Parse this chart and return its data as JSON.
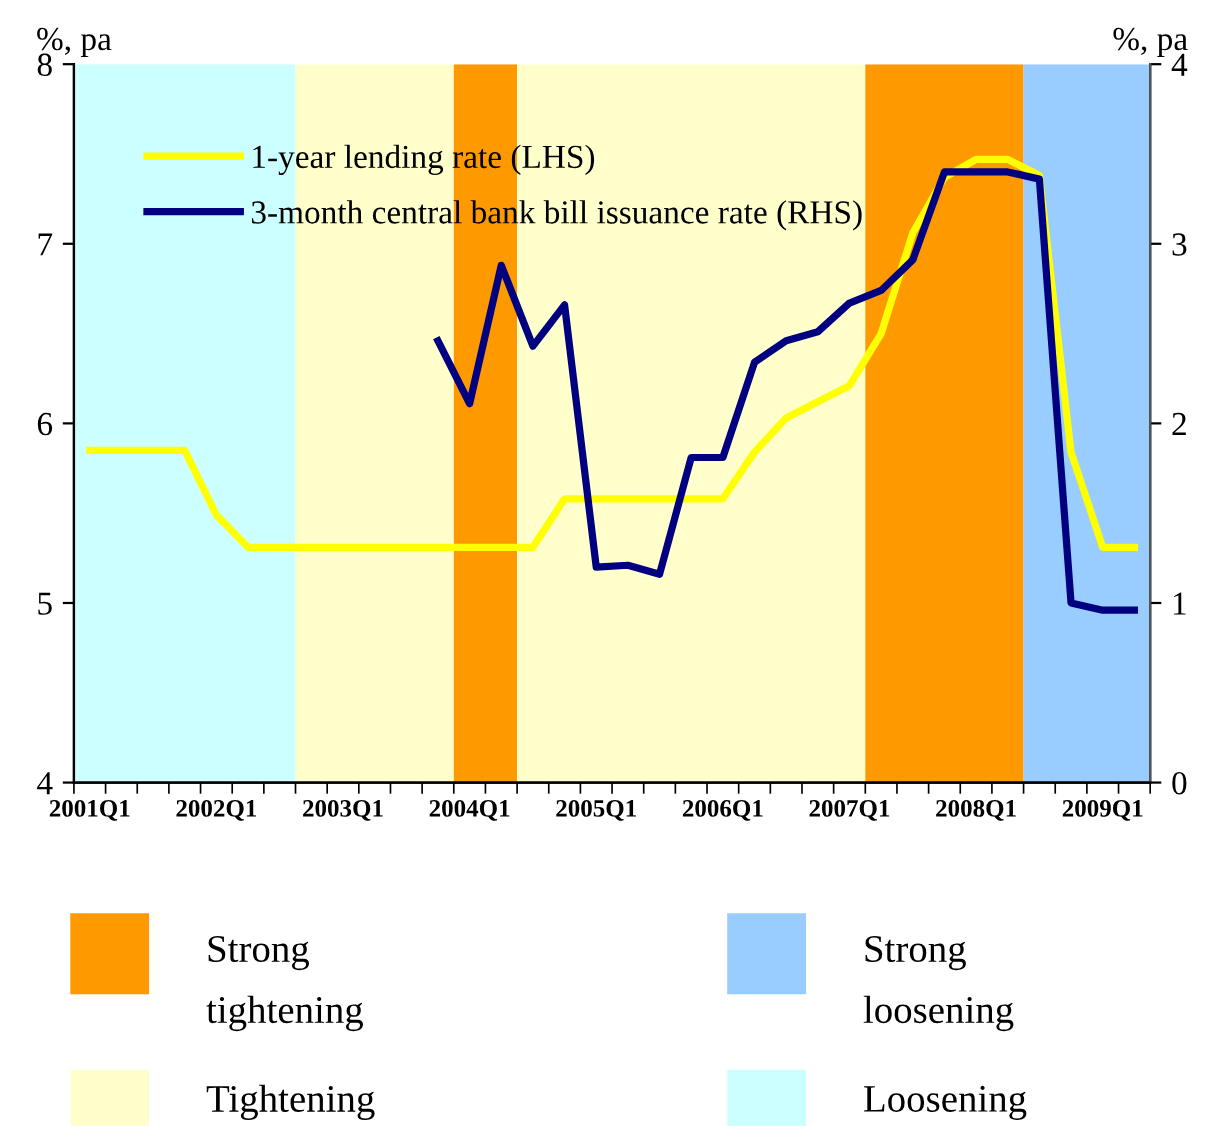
{
  "chart_data": {
    "type": "line",
    "ylabel": "%, pa",
    "y2label": "%, pa",
    "categories": [
      "2001Q1",
      null,
      null,
      null,
      "2002Q1",
      null,
      null,
      null,
      "2003Q1",
      null,
      null,
      null,
      "2004Q1",
      null,
      null,
      null,
      "2005Q1",
      null,
      null,
      null,
      "2006Q1",
      null,
      null,
      null,
      "2007Q1",
      null,
      null,
      null,
      "2008Q1",
      null,
      null,
      null,
      "2009Q1",
      null
    ],
    "series": [
      {
        "name": "1-year lending rate (LHS)",
        "color": "#ffff00",
        "values": [
          5.85,
          5.85,
          5.85,
          5.85,
          5.49,
          5.31,
          5.31,
          5.31,
          5.31,
          5.31,
          5.31,
          5.31,
          5.31,
          5.31,
          5.31,
          5.58,
          5.58,
          5.58,
          5.58,
          5.58,
          5.58,
          5.84,
          6.03,
          6.12,
          6.21,
          6.5,
          7.06,
          7.37,
          7.47,
          7.47,
          7.38,
          5.84,
          5.31,
          5.31
        ]
      },
      {
        "name": "3-month central bank bill issuance rate (RHS)",
        "color": "#000080",
        "axis": "y2",
        "values": [
          null,
          null,
          null,
          null,
          null,
          null,
          null,
          null,
          null,
          null,
          null,
          2.46,
          2.11,
          2.88,
          2.43,
          2.66,
          1.2,
          1.21,
          1.16,
          1.81,
          1.81,
          2.34,
          2.46,
          2.51,
          2.67,
          2.74,
          2.91,
          3.4,
          3.4,
          3.4,
          3.36,
          1.0,
          0.96,
          0.96
        ]
      }
    ],
    "annotations": [
      "Strong tightening",
      "Strong loosening",
      "Tightening",
      "Loosening"
    ],
    "ylim": [
      4,
      8
    ],
    "yticks": [
      4,
      5,
      6,
      7,
      8
    ],
    "y2lim": [
      0,
      4
    ],
    "y2ticks": [
      0,
      1,
      2,
      3,
      4
    ],
    "legend": "top left",
    "marker": "none",
    "line_style": "solid"
  }
}
